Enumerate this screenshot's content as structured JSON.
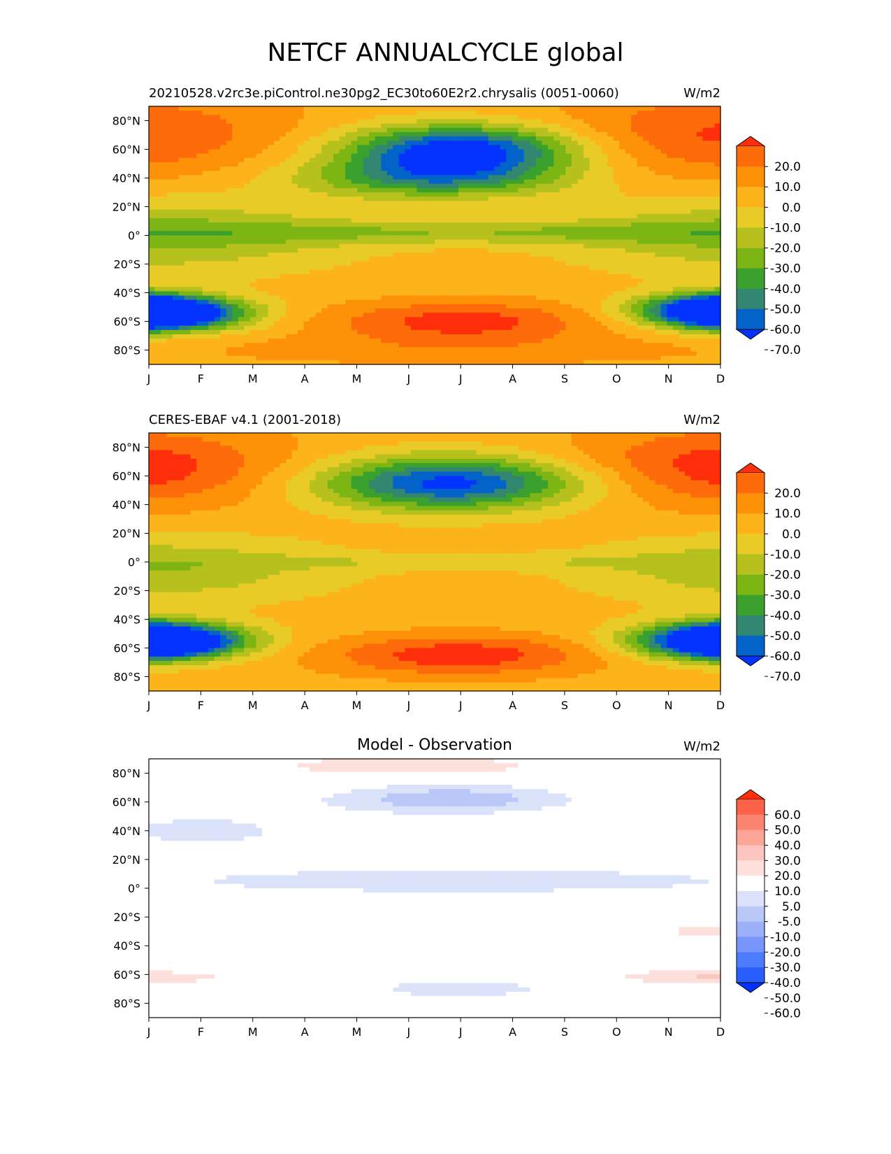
{
  "title": "NETCF ANNUALCYCLE global",
  "colors": {
    "levels_abs": [
      "#0432fe",
      "#0363c8",
      "#33866f",
      "#3aa12e",
      "#7db515",
      "#b7c11e",
      "#e8cb26",
      "#fdb31a",
      "#fd9108",
      "#fe6b0b",
      "#fe2f0a"
    ],
    "levels_diff": [
      "#0432fe",
      "#2a5dfe",
      "#4d7bfe",
      "#7996fc",
      "#9db0fb",
      "#bac8f8",
      "#dbe3fb",
      "#ffffff",
      "#fde0dc",
      "#fdc5bf",
      "#fda596",
      "#fc8571",
      "#fb6248",
      "#fe2f0a"
    ]
  },
  "chart_data": [
    {
      "type": "heatmap",
      "title": "",
      "left_label": "20210528.v2rc3e.piControl.ne30pg2_EC30to60E2r2.chrysalis (0051-0060)",
      "units": "W/m2",
      "x_ticks": [
        "J",
        "F",
        "M",
        "A",
        "M",
        "J",
        "J",
        "A",
        "S",
        "O",
        "N",
        "D"
      ],
      "y_ticks": [
        "80°N",
        "60°N",
        "40°N",
        "20°N",
        "0°",
        "20°S",
        "40°S",
        "60°S",
        "80°S"
      ],
      "y_values": [
        80,
        60,
        40,
        20,
        0,
        -20,
        -40,
        -60,
        -80
      ],
      "ylim": [
        -90,
        90
      ],
      "colorbar": {
        "ticks": [
          "20.0",
          "10.0",
          "0.0",
          "-10.0",
          "-20.0",
          "-30.0",
          "-40.0",
          "-50.0",
          "-60.0",
          "-70.0"
        ],
        "extend": "both"
      }
    },
    {
      "type": "heatmap",
      "title": "",
      "left_label": "CERES-EBAF v4.1 (2001-2018)",
      "units": "W/m2",
      "x_ticks": [
        "J",
        "F",
        "M",
        "A",
        "M",
        "J",
        "J",
        "A",
        "S",
        "O",
        "N",
        "D"
      ],
      "y_ticks": [
        "80°N",
        "60°N",
        "40°N",
        "20°N",
        "0°",
        "20°S",
        "40°S",
        "60°S",
        "80°S"
      ],
      "y_values": [
        80,
        60,
        40,
        20,
        0,
        -20,
        -40,
        -60,
        -80
      ],
      "ylim": [
        -90,
        90
      ],
      "colorbar": {
        "ticks": [
          "20.0",
          "10.0",
          "0.0",
          "-10.0",
          "-20.0",
          "-30.0",
          "-40.0",
          "-50.0",
          "-60.0",
          "-70.0"
        ],
        "extend": "both"
      }
    },
    {
      "type": "heatmap",
      "title": "Model - Observation",
      "left_label": "",
      "units": "W/m2",
      "x_ticks": [
        "J",
        "F",
        "M",
        "A",
        "M",
        "J",
        "J",
        "A",
        "S",
        "O",
        "N",
        "D"
      ],
      "y_ticks": [
        "80°N",
        "60°N",
        "40°N",
        "20°N",
        "0°",
        "20°S",
        "40°S",
        "60°S",
        "80°S"
      ],
      "y_values": [
        80,
        60,
        40,
        20,
        0,
        -20,
        -40,
        -60,
        -80
      ],
      "ylim": [
        -90,
        90
      ],
      "colorbar": {
        "ticks": [
          "60.0",
          "50.0",
          "40.0",
          "30.0",
          "20.0",
          "10.0",
          "5.0",
          "-5.0",
          "-10.0",
          "-20.0",
          "-30.0",
          "-40.0",
          "-50.0",
          "-60.0"
        ],
        "extend": "both"
      }
    }
  ]
}
